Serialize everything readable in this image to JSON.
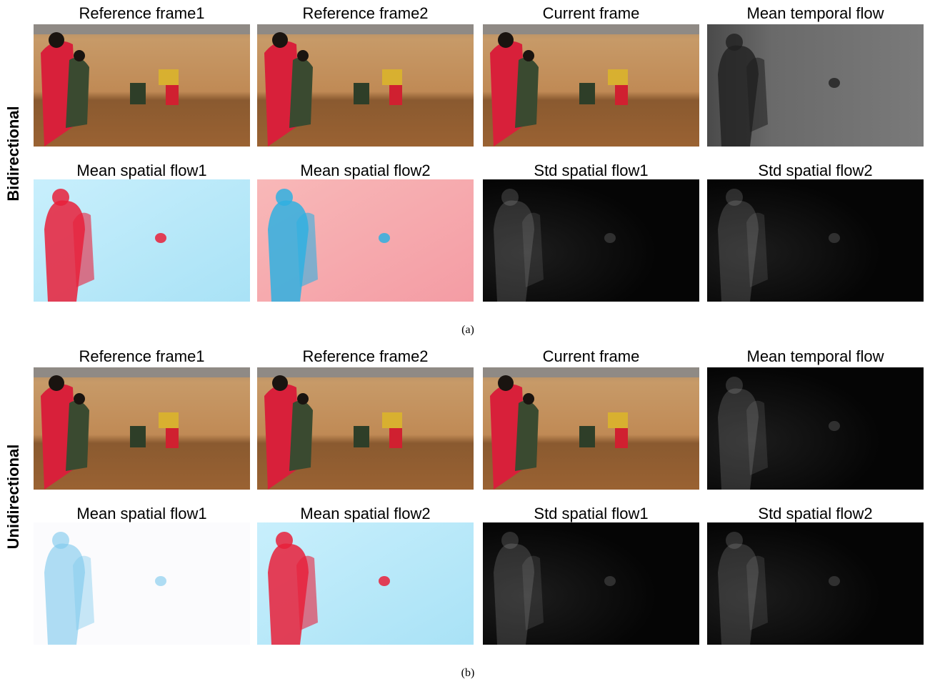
{
  "panels": [
    {
      "label": "Bidirectional",
      "rows": [
        [
          "Reference frame1",
          "Reference frame2",
          "Current frame",
          "Mean temporal flow"
        ],
        [
          "Mean spatial flow1",
          "Mean spatial flow2",
          "Std spatial flow1",
          "Std spatial flow2"
        ]
      ],
      "caption": "(a)"
    },
    {
      "label": "Unidirectional",
      "rows": [
        [
          "Reference frame1",
          "Reference frame2",
          "Current frame",
          "Mean temporal flow"
        ],
        [
          "Mean spatial flow1",
          "Mean spatial flow2",
          "Std spatial flow1",
          "Std spatial flow2"
        ]
      ],
      "caption": "(b)"
    }
  ]
}
